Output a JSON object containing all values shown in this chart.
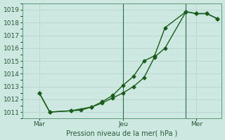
{
  "xlabel": "Pression niveau de la mer( hPa )",
  "background_color": "#cce8e0",
  "grid_color_major": "#b8d8d0",
  "grid_color_minor": "#c8e4dc",
  "line_color": "#1a5c1a",
  "ylim": [
    1010.5,
    1019.5
  ],
  "yticks": [
    1011,
    1012,
    1013,
    1014,
    1015,
    1016,
    1017,
    1018,
    1019
  ],
  "xlim": [
    -0.3,
    9.2
  ],
  "xtick_positions": [
    0.5,
    4.5,
    8.0
  ],
  "xtick_labels": [
    "Mar",
    "Jeu",
    "Mer"
  ],
  "vline_positions": [
    4.5,
    7.5
  ],
  "series1_x": [
    0.5,
    1.0,
    2.0,
    3.0,
    3.5,
    4.0,
    4.5,
    5.0,
    5.5,
    6.0,
    6.5,
    7.5,
    8.0,
    8.5,
    9.0
  ],
  "series1_y": [
    1012.5,
    1011.0,
    1011.1,
    1011.4,
    1011.7,
    1012.2,
    1013.0,
    1013.7,
    1014.9,
    1015.4,
    1017.5,
    1018.8,
    1018.65,
    1018.65,
    1018.3
  ],
  "series2_x": [
    0.5,
    1.0,
    2.0,
    2.5,
    3.0,
    3.5,
    4.0,
    4.5,
    5.0,
    5.5,
    6.0,
    6.5,
    7.5,
    8.0,
    8.5,
    9.0
  ],
  "series2_y": [
    1012.5,
    1011.0,
    1011.1,
    1011.15,
    1011.4,
    1011.7,
    1012.2,
    1012.5,
    1013.0,
    1013.7,
    1015.35,
    1016.0,
    1018.8,
    1018.65,
    1018.65,
    1018.3
  ],
  "marker_style": "D",
  "marker_size": 2.5,
  "line_width": 1.0
}
